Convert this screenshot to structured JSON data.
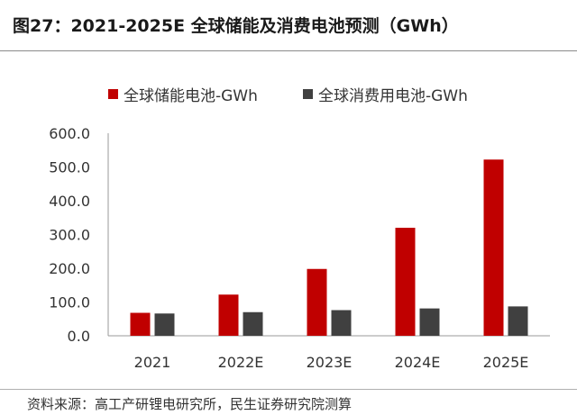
{
  "header": {
    "title": "图27：2021-2025E 全球储能及消费电池预测（GWh）"
  },
  "footer": {
    "source": "资料来源：高工产研锂电研究所，民生证券研究院测算"
  },
  "colors": {
    "series_storage": "#c00000",
    "series_consumer": "#404040"
  },
  "chart_data": {
    "type": "bar",
    "title": "图27：2021-2025E 全球储能及消费电池预测（GWh）",
    "categories": [
      "2021",
      "2022E",
      "2023E",
      "2024E",
      "2025E"
    ],
    "series": [
      {
        "name": "全球储能电池-GWh",
        "values": [
          68,
          122,
          198,
          320,
          522
        ]
      },
      {
        "name": "全球消费用电池-GWh",
        "values": [
          66,
          70,
          76,
          81,
          87
        ]
      }
    ],
    "ylim": [
      0,
      600
    ],
    "yticks": [
      0,
      100,
      200,
      300,
      400,
      500,
      600
    ],
    "ytick_labels": [
      "0.0",
      "100.0",
      "200.0",
      "300.0",
      "400.0",
      "500.0",
      "600.0"
    ],
    "xlabel": "",
    "ylabel": "",
    "legend_position": "top",
    "grid": false
  }
}
